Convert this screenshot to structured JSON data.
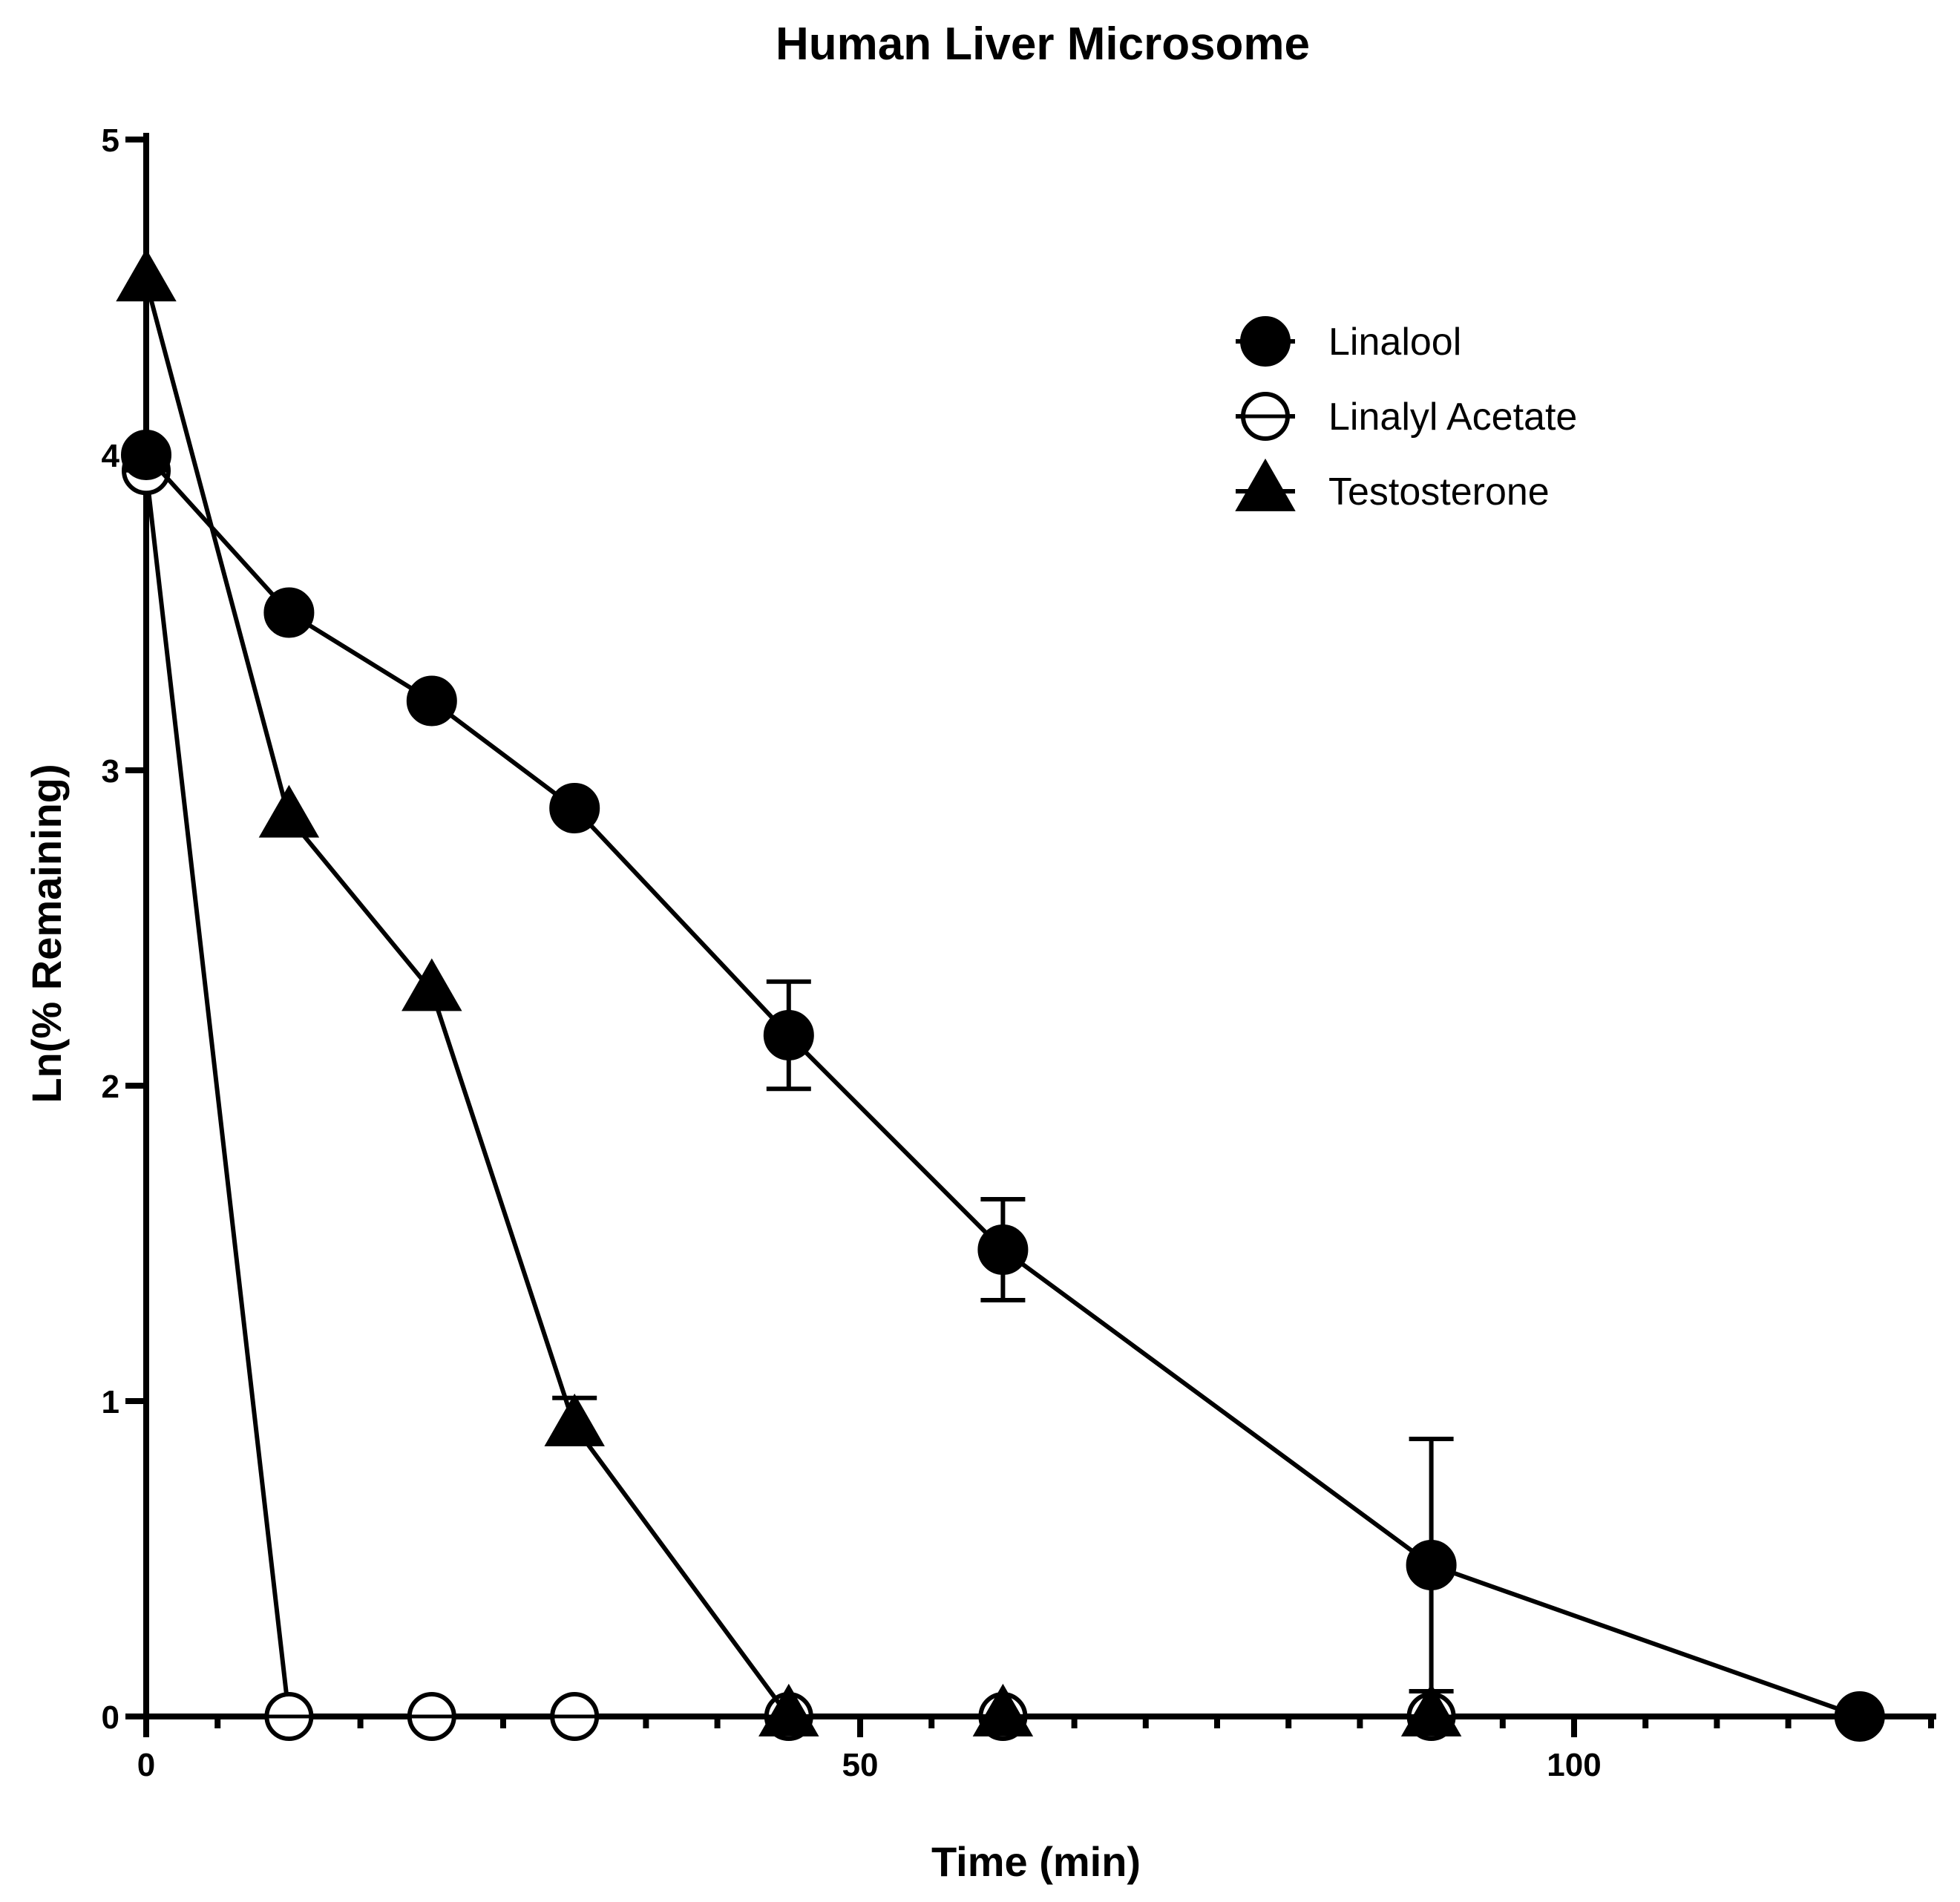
{
  "chart_data": {
    "type": "line",
    "title": "Human Liver Microsome",
    "xlabel": "Time (min)",
    "ylabel": "Ln(% Remaining)",
    "xlim": [
      0,
      125
    ],
    "ylim": [
      0,
      5
    ],
    "x_ticks": [
      0,
      50,
      100
    ],
    "y_ticks": [
      0,
      1,
      2,
      3,
      4,
      5
    ],
    "grid": false,
    "legend_position": "top-right",
    "series": [
      {
        "name": "Linalool",
        "marker": "filled-circle",
        "x": [
          0,
          10,
          20,
          30,
          45,
          60,
          90,
          120
        ],
        "y": [
          4.0,
          3.5,
          3.22,
          2.88,
          2.16,
          1.48,
          0.48,
          0.0
        ],
        "error": [
          0,
          0,
          0,
          0,
          0.17,
          0.16,
          0.4,
          0
        ]
      },
      {
        "name": "Linalyl Acetate",
        "marker": "open-circle",
        "x": [
          0,
          10,
          20,
          30,
          45,
          60,
          90
        ],
        "y": [
          3.95,
          0,
          0,
          0,
          0,
          0,
          0
        ],
        "error": [
          0,
          0,
          0,
          0,
          0,
          0,
          0
        ]
      },
      {
        "name": "Testosterone",
        "marker": "filled-triangle",
        "x": [
          0,
          10,
          20,
          30,
          45,
          60,
          90
        ],
        "y": [
          4.55,
          2.85,
          2.3,
          0.92,
          0,
          0,
          0
        ],
        "error": [
          0,
          0,
          0,
          0.09,
          0,
          0,
          0
        ]
      }
    ]
  }
}
